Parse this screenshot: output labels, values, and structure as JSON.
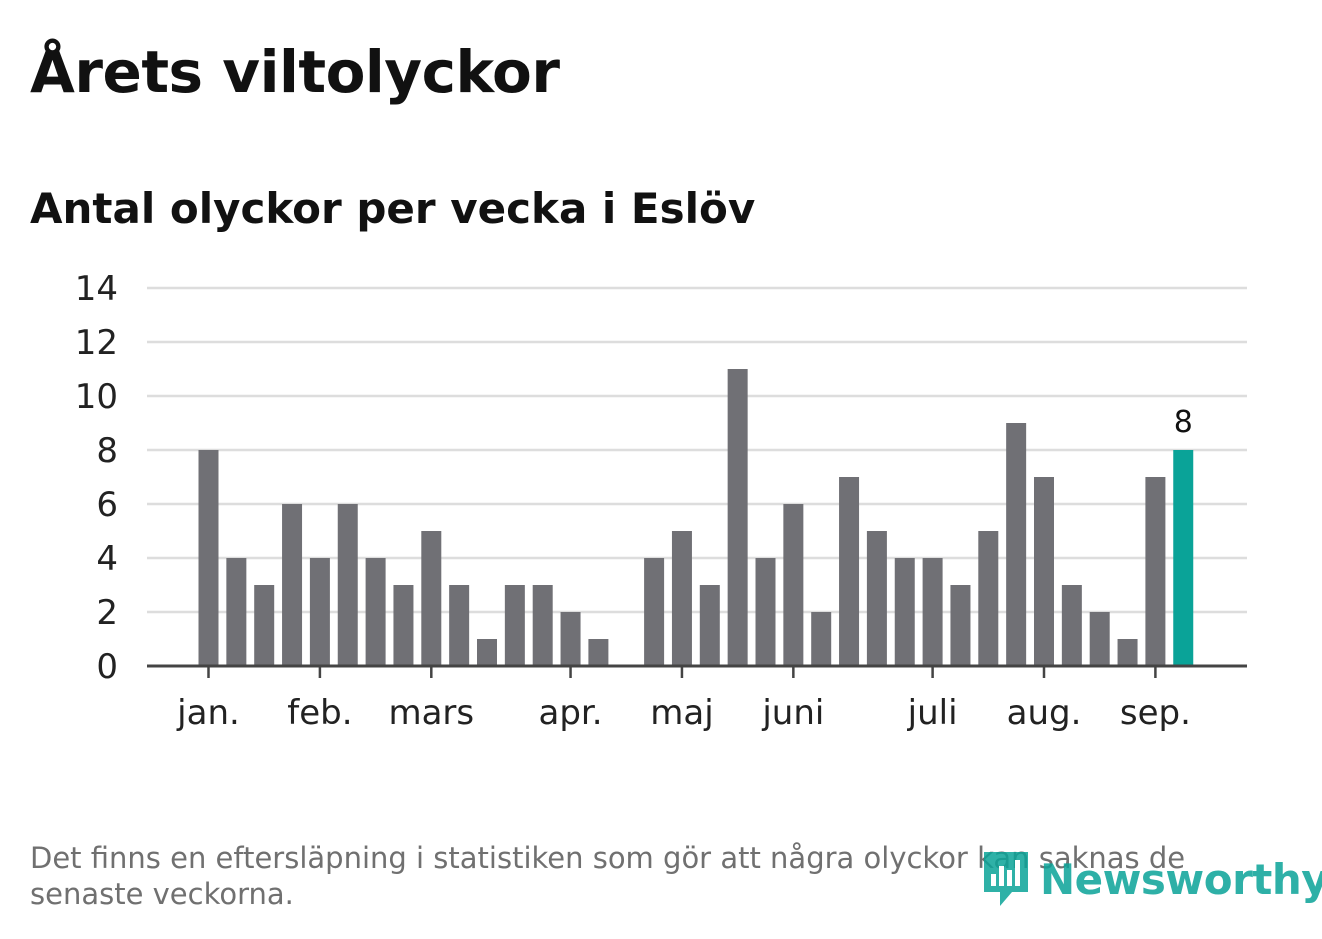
{
  "title": "Årets viltolyckor",
  "subtitle": "Antal olyckor per vecka i Eslöv",
  "note": "Det finns en eftersläpning i statistiken som gör att några olyckor kan saknas de senaste veckorna.",
  "logo": {
    "text": "Newsworthy",
    "icon": "bar-chart-speech-bubble-icon"
  },
  "colors": {
    "bar": "#707075",
    "highlight": "#0aa398",
    "grid": "#dddddd",
    "axis": "#444444",
    "text": "#222222"
  },
  "chart_data": {
    "type": "bar",
    "title": "Antal olyckor per vecka i Eslöv",
    "values": [
      8,
      4,
      3,
      6,
      4,
      6,
      4,
      3,
      5,
      3,
      1,
      3,
      3,
      2,
      1,
      0,
      4,
      5,
      3,
      11,
      4,
      6,
      2,
      7,
      5,
      4,
      4,
      3,
      5,
      9,
      7,
      3,
      2,
      1,
      7,
      8
    ],
    "highlight_last": true,
    "data_labels": [
      {
        "index": 35,
        "text": "8"
      }
    ],
    "ylim": [
      0,
      14
    ],
    "yticks": [
      "0",
      "2",
      "4",
      "6",
      "8",
      "10",
      "12",
      "14"
    ],
    "month_ticks": [
      {
        "label": "jan.",
        "week": 0
      },
      {
        "label": "feb.",
        "week": 4
      },
      {
        "label": "mars",
        "week": 8
      },
      {
        "label": "apr.",
        "week": 13
      },
      {
        "label": "maj",
        "week": 17
      },
      {
        "label": "juni",
        "week": 21
      },
      {
        "label": "juli",
        "week": 26
      },
      {
        "label": "aug.",
        "week": 30
      },
      {
        "label": "sep.",
        "week": 34
      }
    ],
    "grid": true
  }
}
